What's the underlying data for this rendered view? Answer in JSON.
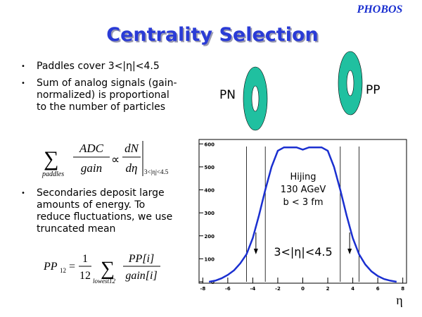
{
  "logo": "PHOBOS",
  "title": "Centrality Selection",
  "bullets": [
    "Paddles cover 3<|η|<4.5",
    "Sum of analog signals (gain-normalized) is proportional to the number of particles",
    "Secondaries deposit large amounts of energy.  To reduce fluctuations, we use truncated mean"
  ],
  "formula1": {
    "sum": "∑",
    "sub": "paddles",
    "num1": "ADC",
    "den1": "gain",
    "prop": "∝",
    "num2": "dN",
    "den2": "dη",
    "range": "3<|η|<4.5"
  },
  "formula2": {
    "lhs": "PP",
    "lhs_sub": "12",
    "eq": "=",
    "num1": "1",
    "den1": "12",
    "sum": "∑",
    "sub": "lowest12",
    "num2": "PP[i]",
    "den2": "gain[i]"
  },
  "paddles": [
    {
      "label": "PN",
      "color": "#20c0a0"
    },
    {
      "label": "PP",
      "color": "#20c0a0"
    }
  ],
  "chart_data": {
    "type": "line",
    "x": [
      -7.5,
      -7,
      -6.5,
      -6,
      -5.5,
      -5,
      -4.5,
      -4,
      -3.5,
      -3,
      -2.5,
      -2,
      -1.5,
      -1,
      -0.5,
      0,
      0.5,
      1,
      1.5,
      2,
      2.5,
      3,
      3.5,
      4,
      4.5,
      5,
      5.5,
      6,
      6.5,
      7,
      7.5
    ],
    "series": [
      {
        "name": "Hijing",
        "color": "#1a2fd0",
        "values": [
          0,
          5,
          15,
          30,
          50,
          80,
          120,
          190,
          290,
          400,
          500,
          570,
          585,
          585,
          585,
          575,
          585,
          585,
          585,
          570,
          500,
          400,
          290,
          190,
          120,
          75,
          45,
          25,
          12,
          5,
          0
        ]
      }
    ],
    "xlim": [
      -8.3,
      8.3
    ],
    "ylim": [
      0,
      610
    ],
    "xticks": [
      -8,
      -6,
      -4,
      -2,
      0,
      2,
      4,
      6,
      8
    ],
    "yticks": [
      0,
      100,
      200,
      300,
      400,
      500,
      600
    ],
    "cuts": [
      -4.5,
      -3,
      3,
      4.5
    ],
    "annotations": [
      "Hijing",
      "130 AGeV",
      "b < 3 fm"
    ],
    "cut_label": "3<|η|<4.5",
    "xlabel": "η"
  }
}
